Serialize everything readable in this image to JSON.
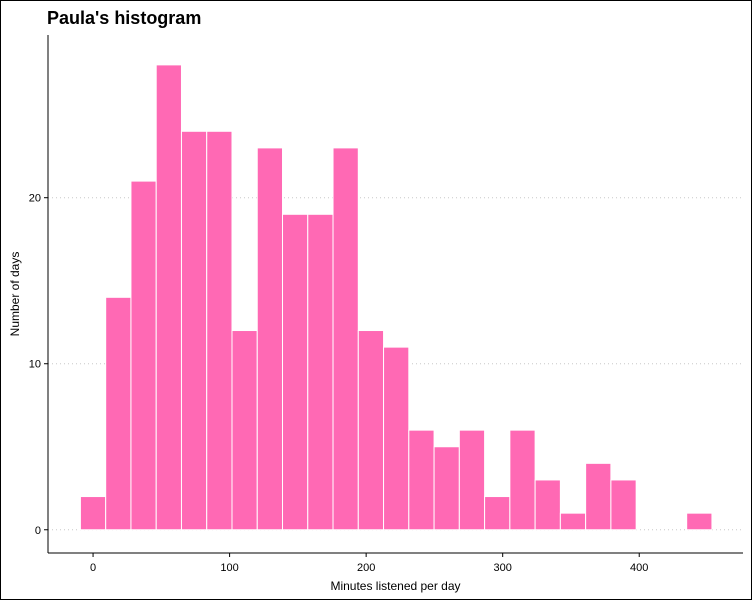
{
  "chart_data": {
    "type": "bar",
    "title": "Paula's histogram",
    "xlabel": "Minutes listened per day",
    "ylabel": "Number of days",
    "bin_width": 18.5,
    "bins": [
      {
        "start": -9.25,
        "count": 2
      },
      {
        "start": 9.25,
        "count": 14
      },
      {
        "start": 27.75,
        "count": 21
      },
      {
        "start": 46.25,
        "count": 28
      },
      {
        "start": 64.75,
        "count": 24
      },
      {
        "start": 83.25,
        "count": 24
      },
      {
        "start": 101.75,
        "count": 12
      },
      {
        "start": 120.25,
        "count": 23
      },
      {
        "start": 138.75,
        "count": 19
      },
      {
        "start": 157.25,
        "count": 19
      },
      {
        "start": 175.75,
        "count": 23
      },
      {
        "start": 194.25,
        "count": 12
      },
      {
        "start": 212.75,
        "count": 11
      },
      {
        "start": 231.25,
        "count": 6
      },
      {
        "start": 249.75,
        "count": 5
      },
      {
        "start": 268.25,
        "count": 6
      },
      {
        "start": 286.75,
        "count": 2
      },
      {
        "start": 305.25,
        "count": 6
      },
      {
        "start": 323.75,
        "count": 3
      },
      {
        "start": 342.25,
        "count": 1
      },
      {
        "start": 360.75,
        "count": 4
      },
      {
        "start": 379.25,
        "count": 3
      },
      {
        "start": 397.75,
        "count": 0
      },
      {
        "start": 416.25,
        "count": 0
      },
      {
        "start": 434.75,
        "count": 1
      }
    ],
    "xlim": [
      -33,
      476
    ],
    "ylim": [
      -1.4,
      29.8
    ],
    "x_ticks": [
      0,
      100,
      200,
      300,
      400
    ],
    "y_ticks": [
      0,
      10,
      20
    ],
    "bar_color": "#FF69B4",
    "bar_outline_color": "#FFFFFF",
    "grid": "dotted horizontal major lines only",
    "legend": "none"
  }
}
